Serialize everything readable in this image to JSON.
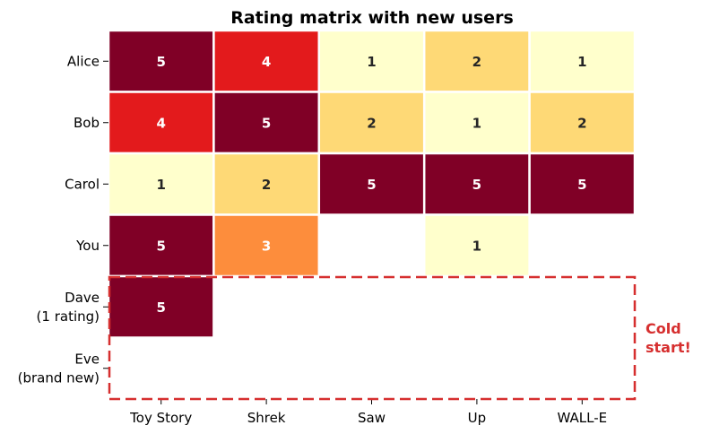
{
  "chart_data": {
    "type": "heatmap",
    "title": "Rating matrix with new users",
    "columns": [
      "Toy Story",
      "Shrek",
      "Saw",
      "Up",
      "WALL-E"
    ],
    "rows": [
      [
        "Alice"
      ],
      [
        "Bob"
      ],
      [
        "Carol"
      ],
      [
        "You"
      ],
      [
        "Dave",
        "(1 rating)"
      ],
      [
        "Eve",
        "(brand new)"
      ]
    ],
    "values": [
      [
        5,
        4,
        1,
        2,
        1
      ],
      [
        4,
        5,
        2,
        1,
        2
      ],
      [
        1,
        2,
        5,
        5,
        5
      ],
      [
        5,
        3,
        null,
        1,
        null
      ],
      [
        5,
        null,
        null,
        null,
        null
      ],
      [
        null,
        null,
        null,
        null,
        null
      ]
    ],
    "color_range": [
      1,
      5
    ],
    "colormap": "YlOrRd",
    "colors": {
      "1": "#ffffcc",
      "2": "#fed976",
      "3": "#fd8d3c",
      "4": "#e31a1c",
      "5": "#800026"
    },
    "highlight": {
      "rows": [
        "Dave",
        "Eve"
      ],
      "label": [
        "Cold",
        "start!"
      ],
      "color": "#d62f2f",
      "style": "dashed"
    }
  }
}
